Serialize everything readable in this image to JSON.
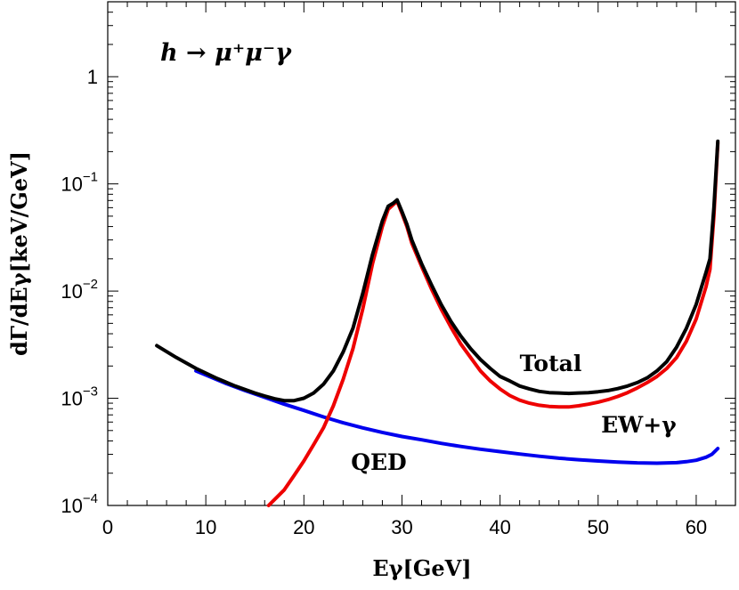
{
  "chart_data": {
    "type": "line",
    "title": "h → μ⁺μ⁻γ",
    "xlabel": "Eγ[GeV]",
    "ylabel": "dΓ/dEγ[keV/GeV]",
    "xlim": [
      0,
      64
    ],
    "ylim": [
      0.0001,
      5
    ],
    "yscale": "log",
    "grid": false,
    "x_ticks": [
      0,
      10,
      20,
      30,
      40,
      50,
      60
    ],
    "x_tick_labels": [
      "0",
      "10",
      "20",
      "30",
      "40",
      "50",
      "60"
    ],
    "y_ticks": [
      0.0001,
      0.001,
      0.01,
      0.1,
      1
    ],
    "y_tick_labels": [
      {
        "base": "10",
        "exp": "−4"
      },
      {
        "base": "10",
        "exp": "−3"
      },
      {
        "base": "10",
        "exp": "−2"
      },
      {
        "base": "10",
        "exp": "−1"
      },
      {
        "base": "1",
        "exp": ""
      }
    ],
    "series": [
      {
        "name": "Total",
        "color": "#000000",
        "x": [
          5,
          7,
          9,
          11,
          13,
          15,
          16,
          17,
          18,
          19,
          20,
          21,
          22,
          23,
          24,
          25,
          26,
          27,
          28,
          28.6,
          29.1,
          29.5,
          30,
          30.5,
          31,
          32,
          33,
          34,
          35,
          36,
          37,
          38,
          39,
          40,
          41,
          42,
          43,
          44,
          45,
          46,
          47,
          48,
          49,
          50,
          51,
          52,
          53,
          54,
          55,
          56,
          57,
          58,
          59,
          60,
          61,
          61.4,
          61.8,
          62.2
        ],
        "y": [
          0.0031,
          0.0024,
          0.0019,
          0.00155,
          0.0013,
          0.00112,
          0.00105,
          0.00099,
          0.00095,
          0.00095,
          0.001,
          0.00112,
          0.00135,
          0.0018,
          0.0027,
          0.0045,
          0.0095,
          0.022,
          0.045,
          0.062,
          0.066,
          0.071,
          0.055,
          0.042,
          0.03,
          0.018,
          0.0115,
          0.0075,
          0.0052,
          0.0038,
          0.0029,
          0.0023,
          0.0019,
          0.0016,
          0.00145,
          0.0013,
          0.00122,
          0.00116,
          0.00113,
          0.00112,
          0.00111,
          0.00112,
          0.00113,
          0.00115,
          0.00118,
          0.00123,
          0.0013,
          0.0014,
          0.00155,
          0.0018,
          0.0022,
          0.003,
          0.0045,
          0.0075,
          0.015,
          0.02,
          0.06,
          0.25
        ]
      },
      {
        "name": "EW+γ",
        "color": "#ee0000",
        "x": [
          16.4,
          18,
          19,
          20,
          21,
          22,
          23,
          24,
          25,
          26,
          27,
          28,
          28.6,
          29.1,
          29.5,
          30,
          30.5,
          31,
          32,
          33,
          34,
          35,
          36,
          37,
          38,
          39,
          40,
          41,
          42,
          43,
          44,
          45,
          46,
          47,
          48,
          49,
          50,
          51,
          52,
          53,
          54,
          55,
          56,
          57,
          58,
          59,
          60,
          61,
          61.4,
          61.8,
          62.2
        ],
        "y": [
          0.0001,
          0.00014,
          0.00019,
          0.00026,
          0.00037,
          0.00053,
          0.00085,
          0.0015,
          0.0029,
          0.0068,
          0.018,
          0.04,
          0.058,
          0.064,
          0.069,
          0.053,
          0.04,
          0.028,
          0.017,
          0.0105,
          0.0068,
          0.0046,
          0.0032,
          0.0024,
          0.0018,
          0.00145,
          0.00122,
          0.00106,
          0.00096,
          0.0009,
          0.00086,
          0.00084,
          0.00083,
          0.00083,
          0.00085,
          0.00088,
          0.00092,
          0.00097,
          0.00104,
          0.00113,
          0.00125,
          0.0014,
          0.0016,
          0.0019,
          0.0024,
          0.0034,
          0.0055,
          0.011,
          0.016,
          0.05,
          0.24
        ]
      },
      {
        "name": "QED",
        "color": "#0000ee",
        "x": [
          9,
          10,
          12,
          14,
          16,
          18,
          20,
          22,
          24,
          26,
          28,
          30,
          32,
          34,
          36,
          38,
          40,
          42,
          44,
          46,
          48,
          50,
          52,
          54,
          56,
          58,
          59,
          60,
          61,
          61.6,
          62.2
        ],
        "y": [
          0.0018,
          0.00165,
          0.00138,
          0.00118,
          0.00102,
          0.00088,
          0.00077,
          0.00067,
          0.00059,
          0.00053,
          0.00048,
          0.00044,
          0.00041,
          0.00038,
          0.000355,
          0.000335,
          0.000318,
          0.000302,
          0.000288,
          0.000276,
          0.000267,
          0.00026,
          0.000254,
          0.00025,
          0.000248,
          0.000251,
          0.000256,
          0.000264,
          0.000282,
          0.0003,
          0.00034
        ]
      }
    ],
    "annotations": [
      {
        "text": "Total",
        "x": 42,
        "y": 0.0018
      },
      {
        "text": "EW+γ",
        "x": 50.3,
        "y": 0.00048
      },
      {
        "text": "QED",
        "x": 24.8,
        "y": 0.000215
      }
    ]
  }
}
